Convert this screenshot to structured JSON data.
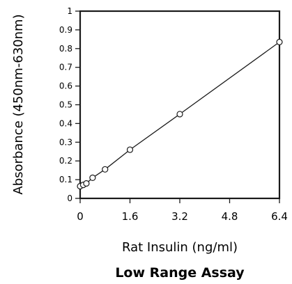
{
  "chart_data": {
    "type": "scatter",
    "title": "Low Range Assay",
    "xlabel": "Rat Insulin (ng/ml)",
    "ylabel": "Absorbance (450nm-630nm)",
    "xlim": [
      0,
      6.4
    ],
    "ylim": [
      0,
      1
    ],
    "x_ticks": [
      "0",
      "1.6",
      "3.2",
      "4.8",
      "6.4"
    ],
    "y_ticks": [
      "0",
      "0.1",
      "0.2",
      "0.3",
      "0.4",
      "0.5",
      "0.6",
      "0.7",
      "0.8",
      "0.9",
      "1"
    ],
    "grid": false,
    "legend": "none",
    "series": [
      {
        "marker": "open-circle",
        "line": "linear-fit",
        "points": [
          {
            "x": 0,
            "y": 0.065
          },
          {
            "x": 0.1,
            "y": 0.072
          },
          {
            "x": 0.2,
            "y": 0.08
          },
          {
            "x": 0.4,
            "y": 0.11
          },
          {
            "x": 0.8,
            "y": 0.155
          },
          {
            "x": 1.6,
            "y": 0.26
          },
          {
            "x": 3.2,
            "y": 0.45
          },
          {
            "x": 6.4,
            "y": 0.835
          }
        ]
      }
    ],
    "colors": {
      "line": "#1a1a1a",
      "marker_fill": "#ffffff",
      "frame": "#1a1a1a"
    }
  }
}
